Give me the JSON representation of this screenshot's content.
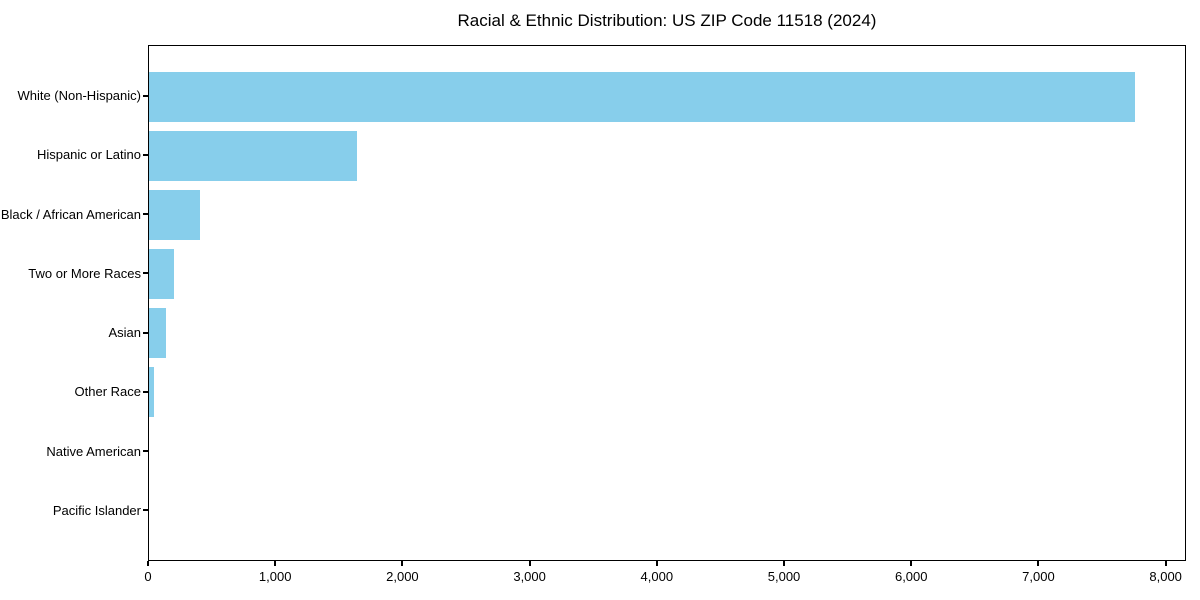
{
  "chart_data": {
    "type": "bar",
    "orientation": "horizontal",
    "title": "Racial & Ethnic Distribution: US ZIP Code 11518 (2024)",
    "categories": [
      "White (Non-Hispanic)",
      "Hispanic or Latino",
      "Black / African American",
      "Two or More Races",
      "Asian",
      "Other Race",
      "Native American",
      "Pacific Islander"
    ],
    "values": [
      7770,
      1640,
      400,
      195,
      135,
      40,
      0,
      0
    ],
    "xlabel": "",
    "ylabel": "",
    "xlim": [
      0,
      8160
    ],
    "xticks": [
      0,
      1000,
      2000,
      3000,
      4000,
      5000,
      6000,
      7000,
      8000
    ],
    "xtick_labels": [
      "0",
      "1,000",
      "2,000",
      "3,000",
      "4,000",
      "5,000",
      "6,000",
      "7,000",
      "8,000"
    ],
    "grid": false,
    "legend": null,
    "bar_color": "#87CEEB",
    "background_color": "#FFFFFF",
    "axis_color": "#000000"
  }
}
